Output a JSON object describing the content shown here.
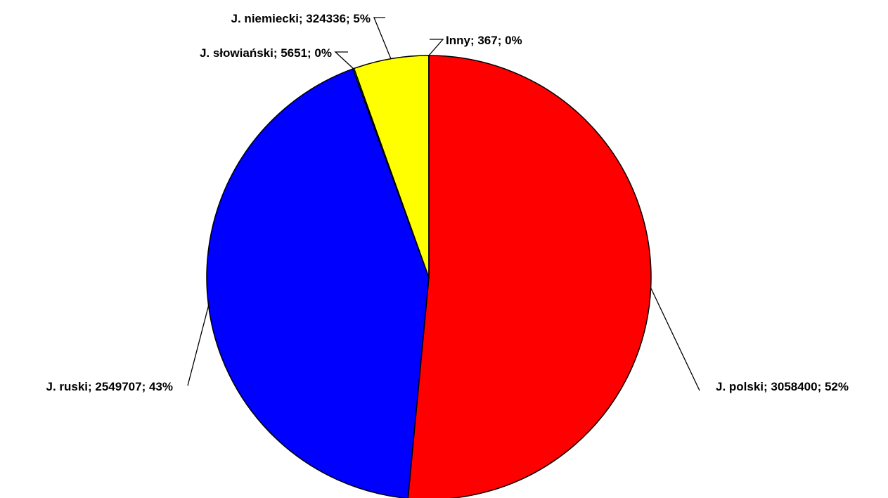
{
  "chart_data": {
    "type": "pie",
    "title": "",
    "slices": [
      {
        "label": "J. polski; 3058400; 52%",
        "name": "J. polski",
        "value": 3058400,
        "percent": 52,
        "color": "#ff0000"
      },
      {
        "label": "J. ruski; 2549707; 43%",
        "name": "J. ruski",
        "value": 2549707,
        "percent": 43,
        "color": "#0000ff"
      },
      {
        "label": "J. słowiański; 5651; 0%",
        "name": "J. słowiański",
        "value": 5651,
        "percent": 0,
        "color": "#00ff00"
      },
      {
        "label": "J. niemiecki; 324336; 5%",
        "name": "J. niemiecki",
        "value": 324336,
        "percent": 5,
        "color": "#ffff00"
      },
      {
        "label": "Inny; 367; 0%",
        "name": "Inny",
        "value": 367,
        "percent": 0,
        "color": "#ff00ff"
      }
    ],
    "start_angle": "12 o'clock",
    "direction": "clockwise",
    "legend": "none"
  }
}
